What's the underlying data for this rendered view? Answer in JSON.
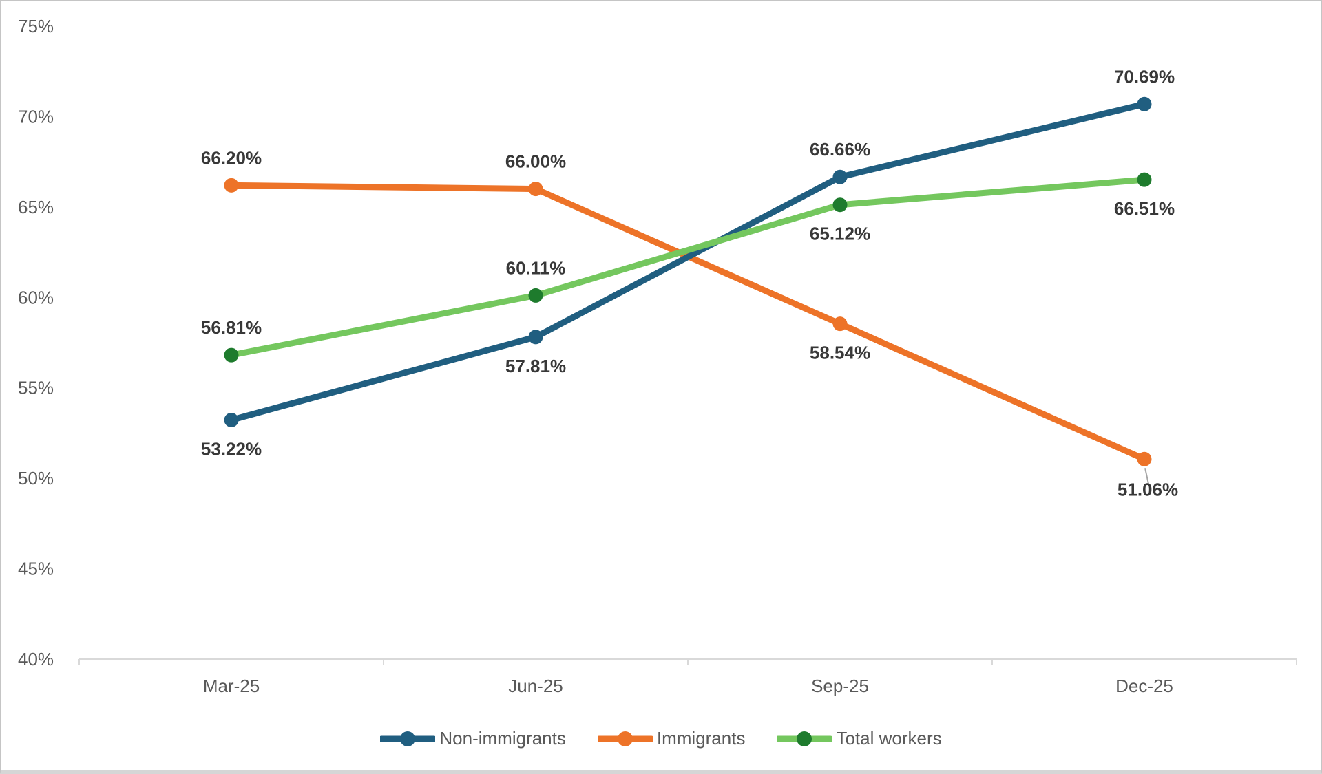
{
  "styles": {
    "background": "#FFFFFF",
    "frame_border_color": "#C5C5C5",
    "frame_bottom_strip_color": "#D6D6D6",
    "axis_line_color": "#D9D9D9",
    "axis_text_color": "#595959",
    "data_label_color": "#383838",
    "legend_text_color": "#595959",
    "leader_line_color": "#A6A6A6"
  },
  "chart_data": {
    "type": "line",
    "title": "",
    "categories": [
      "Mar-25",
      "Jun-25",
      "Sep-25",
      "Dec-25"
    ],
    "series": [
      {
        "name": "Non-immigrants",
        "line_color": "#205E80",
        "marker_color": "#205E80",
        "values": [
          53.22,
          57.81,
          66.66,
          70.69
        ],
        "data_labels": [
          "53.22%",
          "57.81%",
          "66.66%",
          "70.69%"
        ],
        "label_positions": [
          "below",
          "below",
          "above",
          "above"
        ]
      },
      {
        "name": "Immigrants",
        "line_color": "#ED7328",
        "marker_color": "#ED7328",
        "values": [
          66.2,
          66.0,
          58.54,
          51.06
        ],
        "data_labels": [
          "66.20%",
          "66.00%",
          "58.54%",
          "51.06%"
        ],
        "label_positions": [
          "above",
          "above",
          "below",
          "below-leader"
        ]
      },
      {
        "name": "Total workers",
        "line_color": "#74C75E",
        "marker_color": "#1E7B2D",
        "values": [
          56.81,
          60.11,
          65.12,
          66.51
        ],
        "data_labels": [
          "56.81%",
          "60.11%",
          "65.12%",
          "66.51%"
        ],
        "label_positions": [
          "above",
          "above",
          "below",
          "below"
        ]
      }
    ],
    "draw_order": [
      1,
      0,
      2
    ],
    "y_axis": {
      "min": 40,
      "max": 75,
      "step": 5,
      "unit": "%",
      "ticks": [
        {
          "label": "75%",
          "value": 75
        },
        {
          "label": "70%",
          "value": 70
        },
        {
          "label": "65%",
          "value": 65
        },
        {
          "label": "60%",
          "value": 60
        },
        {
          "label": "55%",
          "value": 55
        },
        {
          "label": "50%",
          "value": 50
        },
        {
          "label": "45%",
          "value": 45
        },
        {
          "label": "40%",
          "value": 40
        }
      ]
    },
    "grid": false,
    "legend_position": "bottom-center",
    "legend": [
      "Non-immigrants",
      "Immigrants",
      "Total workers"
    ]
  }
}
